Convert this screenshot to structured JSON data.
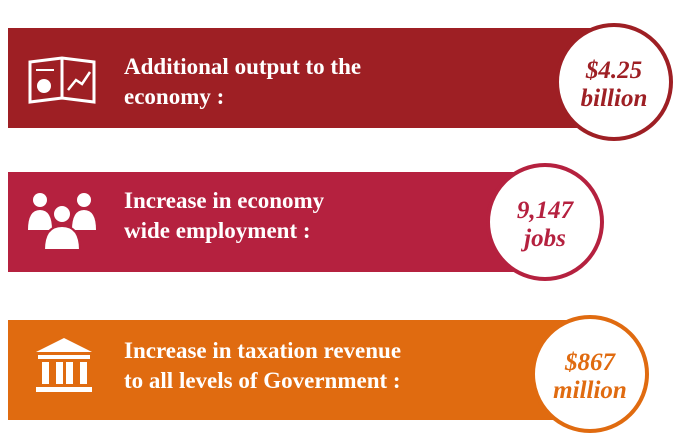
{
  "items": [
    {
      "label": [
        "Additional output to the",
        "economy :"
      ],
      "value": [
        "$4.25",
        "billion"
      ]
    },
    {
      "label": [
        "Increase in economy",
        "wide employment :"
      ],
      "value": [
        "9,147",
        "jobs"
      ]
    },
    {
      "label": [
        "Increase in taxation revenue",
        "to all levels of Government :"
      ],
      "value": [
        "$867",
        "million"
      ]
    }
  ]
}
